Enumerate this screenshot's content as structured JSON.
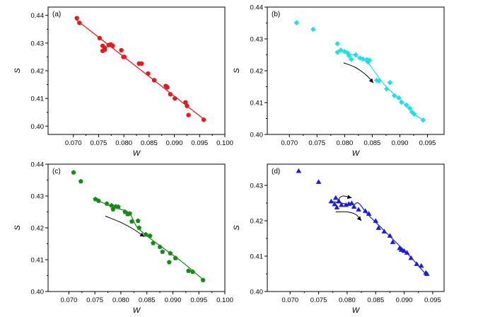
{
  "chart_data": [
    {
      "type": "scatter",
      "panel_label": "(a)",
      "xlabel": "W",
      "ylabel": "S",
      "xlim": [
        0.065,
        0.1
      ],
      "ylim": [
        0.397,
        0.443
      ],
      "xticks": [
        0.07,
        0.075,
        0.08,
        0.085,
        0.09,
        0.095,
        0.1
      ],
      "xtick_labels": [
        "0.070",
        "0.075",
        "0.080",
        "0.085",
        "0.090",
        "0.095",
        "0.100"
      ],
      "yticks": [
        0.4,
        0.41,
        0.42,
        0.43,
        0.44
      ],
      "ytick_labels": [
        "0.40",
        "0.41",
        "0.42",
        "0.43",
        "0.44"
      ],
      "color": "#e8191b",
      "marker": "circle",
      "fit_line": [
        [
          0.0705,
          0.4385
        ],
        [
          0.096,
          0.4023
        ]
      ],
      "points": [
        [
          0.0707,
          0.439
        ],
        [
          0.0712,
          0.4373
        ],
        [
          0.0752,
          0.4318
        ],
        [
          0.0758,
          0.429
        ],
        [
          0.0758,
          0.4272
        ],
        [
          0.0762,
          0.4283
        ],
        [
          0.0762,
          0.4276
        ],
        [
          0.077,
          0.4293
        ],
        [
          0.0774,
          0.4295
        ],
        [
          0.0778,
          0.429
        ],
        [
          0.0795,
          0.4274
        ],
        [
          0.0799,
          0.425
        ],
        [
          0.0801,
          0.425
        ],
        [
          0.083,
          0.4226
        ],
        [
          0.0835,
          0.4226
        ],
        [
          0.0848,
          0.419
        ],
        [
          0.086,
          0.4166
        ],
        [
          0.0883,
          0.4145
        ],
        [
          0.0886,
          0.414
        ],
        [
          0.0892,
          0.4115
        ],
        [
          0.0901,
          0.41
        ],
        [
          0.0922,
          0.4086
        ],
        [
          0.0925,
          0.4073
        ],
        [
          0.0928,
          0.404
        ],
        [
          0.0958,
          0.4023
        ]
      ]
    },
    {
      "type": "scatter",
      "panel_label": "(b)",
      "xlabel": "W",
      "ylabel": "S",
      "xlim": [
        0.066,
        0.098
      ],
      "ylim": [
        0.4,
        0.44
      ],
      "xticks": [
        0.07,
        0.075,
        0.08,
        0.085,
        0.09,
        0.095
      ],
      "xtick_labels": [
        "0.070",
        "0.075",
        "0.080",
        "0.085",
        "0.090",
        "0.095"
      ],
      "yticks": [
        0.4,
        0.41,
        0.42,
        0.43,
        0.44
      ],
      "ytick_labels": [
        "0.40",
        "0.41",
        "0.42",
        "0.43",
        "0.44"
      ],
      "color": "#1ee0e6",
      "marker": "diamond",
      "fit_curve": [
        [
          0.079,
          0.4265
        ],
        [
          0.0815,
          0.425
        ],
        [
          0.084,
          0.4228
        ],
        [
          0.0855,
          0.4195
        ],
        [
          0.0875,
          0.415
        ],
        [
          0.09,
          0.411
        ],
        [
          0.0925,
          0.4065
        ],
        [
          0.0943,
          0.4045
        ]
      ],
      "arrow": [
        [
          0.0798,
          0.4225
        ],
        [
          0.082,
          0.421
        ],
        [
          0.084,
          0.4185
        ],
        [
          0.0852,
          0.4162
        ]
      ],
      "points": [
        [
          0.0713,
          0.4351
        ],
        [
          0.0743,
          0.433
        ],
        [
          0.0787,
          0.4285
        ],
        [
          0.0787,
          0.4258
        ],
        [
          0.0793,
          0.4265
        ],
        [
          0.08,
          0.426
        ],
        [
          0.0805,
          0.4256
        ],
        [
          0.0808,
          0.4247
        ],
        [
          0.0812,
          0.4236
        ],
        [
          0.082,
          0.425
        ],
        [
          0.0828,
          0.424
        ],
        [
          0.0833,
          0.4237
        ],
        [
          0.084,
          0.4235
        ],
        [
          0.0842,
          0.4228
        ],
        [
          0.0845,
          0.4233
        ],
        [
          0.0858,
          0.417
        ],
        [
          0.0862,
          0.4168
        ],
        [
          0.0876,
          0.4143
        ],
        [
          0.0882,
          0.4163
        ],
        [
          0.089,
          0.4122
        ],
        [
          0.0898,
          0.4115
        ],
        [
          0.0903,
          0.4101
        ],
        [
          0.0912,
          0.4092
        ],
        [
          0.0918,
          0.4082
        ],
        [
          0.0922,
          0.407
        ],
        [
          0.0926,
          0.4064
        ],
        [
          0.0942,
          0.4045
        ]
      ]
    },
    {
      "type": "scatter",
      "panel_label": "(c)",
      "xlabel": "W",
      "ylabel": "S",
      "xlim": [
        0.066,
        0.1
      ],
      "ylim": [
        0.4,
        0.44
      ],
      "xticks": [
        0.07,
        0.075,
        0.08,
        0.085,
        0.09,
        0.095,
        0.1
      ],
      "xtick_labels": [
        "0.070",
        "0.075",
        "0.080",
        "0.085",
        "0.090",
        "0.095",
        "0.100"
      ],
      "yticks": [
        0.4,
        0.41,
        0.42,
        0.43,
        0.44
      ],
      "ytick_labels": [
        "0.40",
        "0.41",
        "0.42",
        "0.43",
        "0.44"
      ],
      "color": "#148c14",
      "marker": "pentagon",
      "fit_curve": [
        [
          0.075,
          0.429
        ],
        [
          0.0785,
          0.4265
        ],
        [
          0.0815,
          0.4248
        ],
        [
          0.083,
          0.4205
        ],
        [
          0.085,
          0.4175
        ],
        [
          0.088,
          0.4138
        ],
        [
          0.092,
          0.409
        ],
        [
          0.096,
          0.4035
        ]
      ],
      "arrow": [
        [
          0.077,
          0.4237
        ],
        [
          0.08,
          0.4217
        ],
        [
          0.0825,
          0.4195
        ],
        [
          0.0845,
          0.4172
        ]
      ],
      "points": [
        [
          0.0709,
          0.4374
        ],
        [
          0.0723,
          0.4346
        ],
        [
          0.0751,
          0.429
        ],
        [
          0.0757,
          0.4285
        ],
        [
          0.0773,
          0.4276
        ],
        [
          0.0782,
          0.427
        ],
        [
          0.0785,
          0.4258
        ],
        [
          0.079,
          0.4267
        ],
        [
          0.0795,
          0.4266
        ],
        [
          0.0808,
          0.425
        ],
        [
          0.0813,
          0.4243
        ],
        [
          0.0817,
          0.4245
        ],
        [
          0.0821,
          0.422
        ],
        [
          0.0833,
          0.4222
        ],
        [
          0.0835,
          0.42
        ],
        [
          0.0848,
          0.4179
        ],
        [
          0.0856,
          0.4175
        ],
        [
          0.0862,
          0.4152
        ],
        [
          0.0875,
          0.414
        ],
        [
          0.088,
          0.4125
        ],
        [
          0.0895,
          0.412
        ],
        [
          0.0893,
          0.4092
        ],
        [
          0.0905,
          0.4105
        ],
        [
          0.093,
          0.4065
        ],
        [
          0.0938,
          0.4062
        ],
        [
          0.0958,
          0.4036
        ]
      ]
    },
    {
      "type": "scatter",
      "panel_label": "(d)",
      "xlabel": "W",
      "ylabel": "S",
      "xlim": [
        0.066,
        0.097
      ],
      "ylim": [
        0.4,
        0.436
      ],
      "xticks": [
        0.07,
        0.075,
        0.08,
        0.085,
        0.09,
        0.095
      ],
      "xtick_labels": [
        "0.070",
        "0.075",
        "0.080",
        "0.085",
        "0.090",
        "0.095"
      ],
      "yticks": [
        0.4,
        0.41,
        0.42,
        0.43
      ],
      "ytick_labels": [
        "0.40",
        "0.41",
        "0.42",
        "0.43"
      ],
      "color": "#1a1ae6",
      "marker": "triangle",
      "fit_curve": [
        [
          0.0772,
          0.4255
        ],
        [
          0.079,
          0.425
        ],
        [
          0.081,
          0.4245
        ],
        [
          0.082,
          0.425
        ],
        [
          0.0835,
          0.422
        ],
        [
          0.086,
          0.418
        ],
        [
          0.0885,
          0.414
        ],
        [
          0.091,
          0.41
        ],
        [
          0.094,
          0.4045
        ]
      ],
      "arrow": [
        [
          0.078,
          0.4225
        ],
        [
          0.08,
          0.4225
        ],
        [
          0.0815,
          0.4218
        ],
        [
          0.0825,
          0.42
        ]
      ],
      "arrow2": [
        [
          0.079,
          0.4248
        ],
        [
          0.0786,
          0.4262
        ],
        [
          0.0793,
          0.427
        ],
        [
          0.0808,
          0.4265
        ]
      ],
      "points": [
        [
          0.0715,
          0.4341
        ],
        [
          0.075,
          0.431
        ],
        [
          0.0772,
          0.4255
        ],
        [
          0.0778,
          0.4247
        ],
        [
          0.078,
          0.4265
        ],
        [
          0.0782,
          0.4238
        ],
        [
          0.0785,
          0.4255
        ],
        [
          0.079,
          0.4245
        ],
        [
          0.0798,
          0.4245
        ],
        [
          0.0803,
          0.4248
        ],
        [
          0.0808,
          0.425
        ],
        [
          0.0812,
          0.424
        ],
        [
          0.082,
          0.4232
        ],
        [
          0.0832,
          0.4228
        ],
        [
          0.0838,
          0.422
        ],
        [
          0.085,
          0.42
        ],
        [
          0.0855,
          0.418
        ],
        [
          0.0865,
          0.417
        ],
        [
          0.0875,
          0.4158
        ],
        [
          0.088,
          0.414
        ],
        [
          0.0892,
          0.4123
        ],
        [
          0.0895,
          0.4118
        ],
        [
          0.09,
          0.4115
        ],
        [
          0.0905,
          0.411
        ],
        [
          0.0912,
          0.4095
        ],
        [
          0.0922,
          0.4078
        ],
        [
          0.093,
          0.4073
        ],
        [
          0.0938,
          0.4053
        ],
        [
          0.094,
          0.405
        ]
      ]
    }
  ]
}
